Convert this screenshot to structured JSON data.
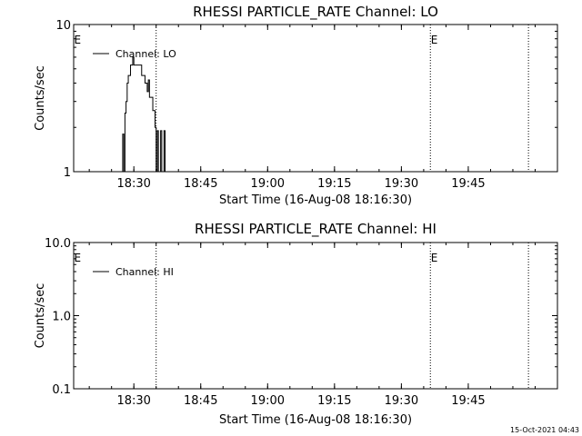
{
  "chart_data": [
    {
      "type": "line",
      "title": "RHESSI PARTICLE_RATE Channel: LO",
      "xlabel": "Start Time (16-Aug-08 18:16:30)",
      "ylabel": "Counts/sec",
      "yscale": "log",
      "ylim": [
        1,
        10
      ],
      "xlim": [
        "18:16:30",
        "20:05:00"
      ],
      "x_ticks": [
        "18:30",
        "18:45",
        "19:00",
        "19:15",
        "19:30",
        "19:45"
      ],
      "y_ticks": [
        "1",
        "10"
      ],
      "legend": {
        "placement": "top-left",
        "entries": [
          "Channel: LO"
        ]
      },
      "markers": [
        {
          "label": "E",
          "time": "18:16:30"
        },
        {
          "label": "E",
          "time": "19:36:30"
        }
      ],
      "dotted_lines": [
        "18:35:00",
        "19:36:30",
        "19:58:30"
      ],
      "series": [
        {
          "name": "Channel: LO",
          "points": [
            [
              "18:27:30",
              1.0
            ],
            [
              "18:27:30",
              1.8
            ],
            [
              "18:27:45",
              1.8
            ],
            [
              "18:27:45",
              1.0
            ],
            [
              "18:28:00",
              1.0
            ],
            [
              "18:28:00",
              2.5
            ],
            [
              "18:28:15",
              2.5
            ],
            [
              "18:28:15",
              3.0
            ],
            [
              "18:28:30",
              3.0
            ],
            [
              "18:28:30",
              4.0
            ],
            [
              "18:28:45",
              4.0
            ],
            [
              "18:28:45",
              4.5
            ],
            [
              "18:29:15",
              4.5
            ],
            [
              "18:29:15",
              5.3
            ],
            [
              "18:29:45",
              5.3
            ],
            [
              "18:29:45",
              6.0
            ],
            [
              "18:30:00",
              6.0
            ],
            [
              "18:30:00",
              5.3
            ],
            [
              "18:31:45",
              5.3
            ],
            [
              "18:31:45",
              4.5
            ],
            [
              "18:32:30",
              4.5
            ],
            [
              "18:32:30",
              4.0
            ],
            [
              "18:33:00",
              4.0
            ],
            [
              "18:33:00",
              3.5
            ],
            [
              "18:33:15",
              3.5
            ],
            [
              "18:33:15",
              4.2
            ],
            [
              "18:33:30",
              4.2
            ],
            [
              "18:33:30",
              3.2
            ],
            [
              "18:34:15",
              3.2
            ],
            [
              "18:34:15",
              2.6
            ],
            [
              "18:34:45",
              2.6
            ],
            [
              "18:34:45",
              2.0
            ],
            [
              "18:35:00",
              2.0
            ],
            [
              "18:35:00",
              1.0
            ],
            [
              "18:35:15",
              1.0
            ],
            [
              "18:35:15",
              1.9
            ],
            [
              "18:35:30",
              1.9
            ],
            [
              "18:35:30",
              1.0
            ],
            [
              "18:36:00",
              1.0
            ],
            [
              "18:36:00",
              1.9
            ],
            [
              "18:36:15",
              1.9
            ],
            [
              "18:36:15",
              1.0
            ],
            [
              "18:36:45",
              1.0
            ],
            [
              "18:36:45",
              1.9
            ],
            [
              "18:37:00",
              1.9
            ],
            [
              "18:37:00",
              1.0
            ]
          ]
        }
      ]
    },
    {
      "type": "line",
      "title": "RHESSI PARTICLE_RATE Channel: HI",
      "xlabel": "Start Time (16-Aug-08 18:16:30)",
      "ylabel": "Counts/sec",
      "yscale": "log",
      "ylim": [
        0.1,
        10
      ],
      "xlim": [
        "18:16:30",
        "20:05:00"
      ],
      "x_ticks": [
        "18:30",
        "18:45",
        "19:00",
        "19:15",
        "19:30",
        "19:45"
      ],
      "y_ticks": [
        "0.1",
        "1.0",
        "10.0"
      ],
      "legend": {
        "placement": "top-left",
        "entries": [
          "Channel: HI"
        ]
      },
      "markers": [
        {
          "label": "E",
          "time": "18:16:30"
        },
        {
          "label": "E",
          "time": "19:36:30"
        }
      ],
      "dotted_lines": [
        "18:35:00",
        "19:36:30",
        "19:58:30"
      ],
      "series": [
        {
          "name": "Channel: HI",
          "points": []
        }
      ]
    }
  ],
  "timestamp": "15-Oct-2021 04:43",
  "colors": {
    "background": "#ffffff",
    "foreground": "#000000"
  }
}
